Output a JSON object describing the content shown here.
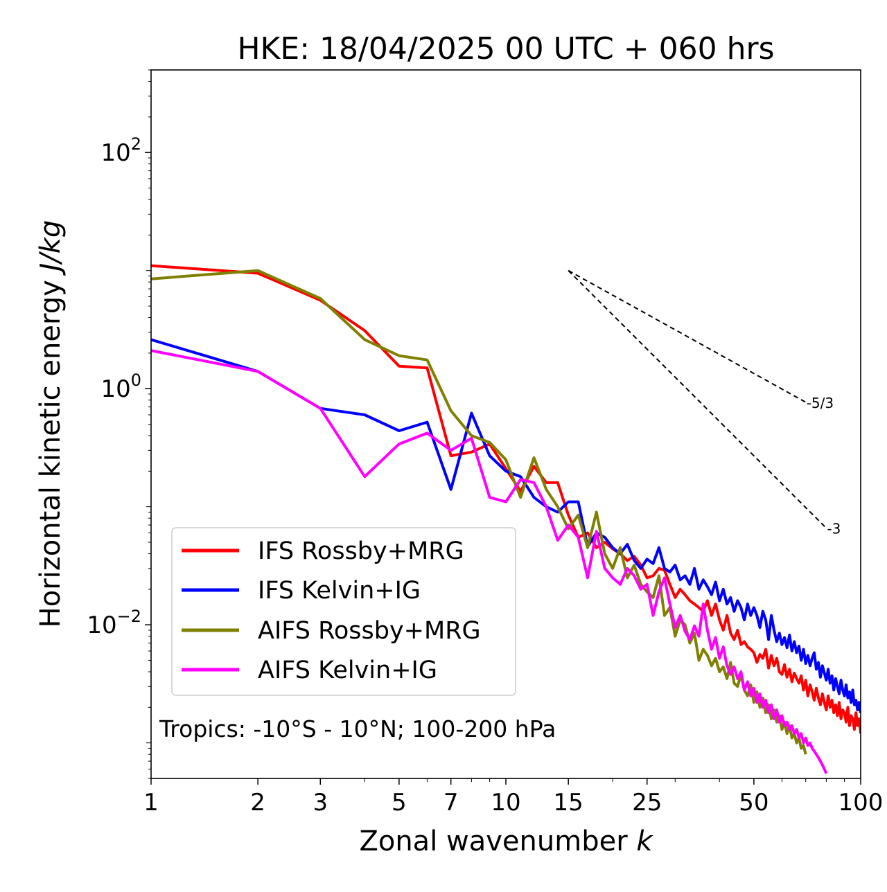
{
  "chart_data": {
    "type": "line",
    "title": "HKE: 18/04/2025 00 UTC + 060 hrs",
    "xlabel": "Zonal wavenumber k",
    "xlabel_prefix": "Zonal wavenumber ",
    "xlabel_var": "k",
    "ylabel": "Horizontal kinetic energy J/kg",
    "ylabel_prefix": "Horizontal kinetic energy ",
    "ylabel_var": "J/kg",
    "xscale": "log",
    "yscale": "log",
    "xlim": [
      1,
      100
    ],
    "ylim": [
      0.0005,
      500
    ],
    "x_ticks": [
      1,
      2,
      3,
      5,
      7,
      10,
      15,
      25,
      50,
      100
    ],
    "x_tick_labels": [
      "1",
      "2",
      "3",
      "5",
      "7",
      "10",
      "15",
      "25",
      "50",
      "100"
    ],
    "y_ticks": [
      0.01,
      1,
      100
    ],
    "y_tick_labels": [
      {
        "base": "10",
        "exp": "−2"
      },
      {
        "base": "10",
        "exp": "0"
      },
      {
        "base": "10",
        "exp": "2"
      }
    ],
    "grid": false,
    "legend_position": "lower-left",
    "annotation": "Tropics: -10°S - 10°N; 100-200 hPa",
    "reference_lines": [
      {
        "label": "-5/3",
        "slope": -1.6667,
        "x_start": 15,
        "x_end": 70,
        "y_start": 10.0
      },
      {
        "label": "-3",
        "slope": -3,
        "x_start": 15,
        "x_end": 80,
        "y_start": 10.0
      }
    ],
    "series": [
      {
        "name": "IFS Rossby+MRG",
        "color": "#ff0000",
        "x": [
          1,
          2,
          3,
          4,
          5,
          6,
          7,
          8,
          9,
          10,
          11,
          12,
          13,
          14,
          15,
          16,
          17,
          18,
          19,
          20,
          21,
          22,
          23,
          24,
          25,
          26,
          27,
          28,
          29,
          30,
          31,
          32,
          33,
          34,
          35,
          36,
          37,
          38,
          39,
          40,
          41,
          42,
          43,
          44,
          45,
          46,
          47,
          48,
          49,
          50,
          51,
          52,
          53,
          54,
          55,
          56,
          57,
          58,
          59,
          60,
          61,
          62,
          63,
          64,
          65,
          66,
          67,
          68,
          69,
          70,
          71,
          72,
          73,
          74,
          75,
          76,
          77,
          78,
          79,
          80,
          81,
          82,
          83,
          84,
          85,
          86,
          87,
          88,
          89,
          90,
          91,
          92,
          93,
          94,
          95,
          96,
          97,
          98,
          99,
          100
        ],
        "values": [
          11.0,
          9.5,
          5.6,
          3.1,
          1.55,
          1.5,
          0.27,
          0.29,
          0.34,
          0.21,
          0.135,
          0.22,
          0.16,
          0.16,
          0.085,
          0.055,
          0.06,
          0.045,
          0.05,
          0.044,
          0.04,
          0.035,
          0.038,
          0.032,
          0.025,
          0.026,
          0.03,
          0.029,
          0.022,
          0.017,
          0.02,
          0.018,
          0.016,
          0.015,
          0.014,
          0.013,
          0.016,
          0.012,
          0.015,
          0.011,
          0.009,
          0.012,
          0.0085,
          0.0075,
          0.009,
          0.0068,
          0.0072,
          0.0065,
          0.0062,
          0.0058,
          0.0048,
          0.0056,
          0.0052,
          0.0062,
          0.0043,
          0.0055,
          0.0045,
          0.0052,
          0.004,
          0.0038,
          0.0046,
          0.0036,
          0.0042,
          0.0033,
          0.0039,
          0.0035,
          0.0032,
          0.0037,
          0.0028,
          0.0034,
          0.0025,
          0.0031,
          0.0027,
          0.0023,
          0.0029,
          0.0024,
          0.0021,
          0.0026,
          0.0022,
          0.0019,
          0.0025,
          0.002,
          0.0023,
          0.0018,
          0.0021,
          0.0017,
          0.0022,
          0.0016,
          0.0019,
          0.0018,
          0.0015,
          0.002,
          0.0014,
          0.0017,
          0.0016,
          0.0013,
          0.0018,
          0.0014,
          0.0016,
          0.0012
        ]
      },
      {
        "name": "IFS Kelvin+IG",
        "color": "#0000ff",
        "x": [
          1,
          2,
          3,
          4,
          5,
          6,
          7,
          8,
          9,
          10,
          11,
          12,
          13,
          14,
          15,
          16,
          17,
          18,
          19,
          20,
          21,
          22,
          23,
          24,
          25,
          26,
          27,
          28,
          29,
          30,
          31,
          32,
          33,
          34,
          35,
          36,
          37,
          38,
          39,
          40,
          41,
          42,
          43,
          44,
          45,
          46,
          47,
          48,
          49,
          50,
          51,
          52,
          53,
          54,
          55,
          56,
          57,
          58,
          59,
          60,
          61,
          62,
          63,
          64,
          65,
          66,
          67,
          68,
          69,
          70,
          71,
          72,
          73,
          74,
          75,
          76,
          77,
          78,
          79,
          80,
          81,
          82,
          83,
          84,
          85,
          86,
          87,
          88,
          89,
          90,
          91,
          92,
          93,
          94,
          95,
          96,
          97,
          98,
          99,
          100
        ],
        "values": [
          2.6,
          1.4,
          0.68,
          0.6,
          0.44,
          0.52,
          0.14,
          0.62,
          0.27,
          0.2,
          0.18,
          0.12,
          0.1,
          0.09,
          0.11,
          0.11,
          0.046,
          0.06,
          0.055,
          0.045,
          0.04,
          0.048,
          0.035,
          0.03,
          0.036,
          0.033,
          0.045,
          0.03,
          0.028,
          0.032,
          0.024,
          0.026,
          0.022,
          0.03,
          0.02,
          0.024,
          0.021,
          0.018,
          0.023,
          0.016,
          0.02,
          0.015,
          0.017,
          0.013,
          0.016,
          0.014,
          0.011,
          0.015,
          0.012,
          0.014,
          0.012,
          0.0095,
          0.013,
          0.011,
          0.0075,
          0.012,
          0.009,
          0.0072,
          0.0085,
          0.0068,
          0.0078,
          0.0064,
          0.0082,
          0.006,
          0.0072,
          0.0058,
          0.0066,
          0.005,
          0.0062,
          0.0047,
          0.0055,
          0.0045,
          0.0052,
          0.0058,
          0.0042,
          0.0048,
          0.0036,
          0.0045,
          0.0039,
          0.0034,
          0.0042,
          0.0032,
          0.0037,
          0.0028,
          0.0035,
          0.003,
          0.0026,
          0.0034,
          0.0028,
          0.0025,
          0.0031,
          0.0024,
          0.0027,
          0.0022,
          0.0028,
          0.0021,
          0.0023,
          0.0019,
          0.0022,
          0.0018
        ]
      },
      {
        "name": "AIFS Rossby+MRG",
        "color": "#808000",
        "x": [
          1,
          2,
          3,
          4,
          5,
          6,
          7,
          8,
          9,
          10,
          11,
          12,
          13,
          14,
          15,
          16,
          17,
          18,
          19,
          20,
          21,
          22,
          23,
          24,
          25,
          26,
          27,
          28,
          29,
          30,
          31,
          32,
          33,
          34,
          35,
          36,
          37,
          38,
          39,
          40,
          41,
          42,
          43,
          44,
          45,
          46,
          47,
          48,
          49,
          50,
          51,
          52,
          53,
          54,
          55,
          56,
          57,
          58,
          59,
          60,
          61,
          62,
          63,
          64,
          65,
          66,
          67,
          68,
          69,
          70
        ],
        "values": [
          8.5,
          10.0,
          5.8,
          2.6,
          1.9,
          1.75,
          0.65,
          0.4,
          0.35,
          0.25,
          0.12,
          0.26,
          0.14,
          0.1,
          0.065,
          0.085,
          0.045,
          0.09,
          0.04,
          0.03,
          0.045,
          0.025,
          0.032,
          0.022,
          0.019,
          0.017,
          0.026,
          0.012,
          0.014,
          0.008,
          0.011,
          0.01,
          0.007,
          0.0085,
          0.005,
          0.0062,
          0.0055,
          0.0045,
          0.0052,
          0.004,
          0.0044,
          0.0035,
          0.0048,
          0.0032,
          0.003,
          0.0038,
          0.0028,
          0.0025,
          0.0031,
          0.0022,
          0.0027,
          0.002,
          0.0024,
          0.0018,
          0.0021,
          0.0016,
          0.0019,
          0.0015,
          0.0017,
          0.0013,
          0.0015,
          0.0012,
          0.0014,
          0.0011,
          0.0012,
          0.001,
          0.0011,
          0.0009,
          0.00095,
          0.0008
        ]
      },
      {
        "name": "AIFS Kelvin+IG",
        "color": "#ff00ff",
        "x": [
          1,
          2,
          3,
          4,
          5,
          6,
          7,
          8,
          9,
          10,
          11,
          12,
          13,
          14,
          15,
          16,
          17,
          18,
          19,
          20,
          21,
          22,
          23,
          24,
          25,
          26,
          27,
          28,
          29,
          30,
          31,
          32,
          33,
          34,
          35,
          36,
          37,
          38,
          39,
          40,
          41,
          42,
          43,
          44,
          45,
          46,
          47,
          48,
          49,
          50,
          51,
          52,
          53,
          54,
          55,
          56,
          57,
          58,
          59,
          60,
          61,
          62,
          63,
          64,
          65,
          66,
          67,
          68,
          69,
          70,
          71,
          72,
          73,
          74,
          75,
          76,
          77,
          78,
          79,
          80
        ],
        "values": [
          2.1,
          1.4,
          0.68,
          0.18,
          0.34,
          0.42,
          0.3,
          0.38,
          0.12,
          0.11,
          0.17,
          0.16,
          0.1,
          0.052,
          0.07,
          0.055,
          0.025,
          0.062,
          0.03,
          0.025,
          0.022,
          0.03,
          0.026,
          0.02,
          0.022,
          0.012,
          0.019,
          0.025,
          0.015,
          0.0095,
          0.012,
          0.0088,
          0.0075,
          0.0098,
          0.008,
          0.015,
          0.009,
          0.0062,
          0.0078,
          0.0052,
          0.0065,
          0.0045,
          0.0038,
          0.0044,
          0.0035,
          0.004,
          0.0028,
          0.0033,
          0.0025,
          0.0029,
          0.0022,
          0.0026,
          0.002,
          0.0023,
          0.0018,
          0.0021,
          0.0016,
          0.0019,
          0.0015,
          0.0017,
          0.0014,
          0.0015,
          0.0013,
          0.0014,
          0.0012,
          0.0013,
          0.0011,
          0.0012,
          0.001,
          0.0011,
          0.00095,
          0.001,
          0.0009,
          0.00085,
          0.0008,
          0.00075,
          0.0007,
          0.00065,
          0.0006,
          0.00055
        ]
      }
    ]
  }
}
